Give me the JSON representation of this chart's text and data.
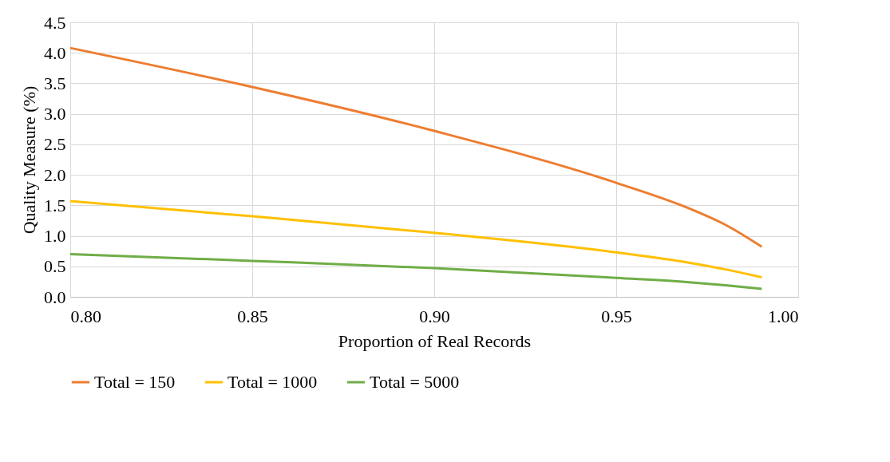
{
  "chart_data": {
    "type": "line",
    "xlabel": "Proportion of Real Records",
    "ylabel": "Quality Measure (%)",
    "x": [
      0.8,
      0.85,
      0.9,
      0.95,
      0.97,
      0.98,
      0.99
    ],
    "series": [
      {
        "name": "Total = 150",
        "color": "#ed7d31",
        "values": [
          4.08,
          3.44,
          2.72,
          1.87,
          1.45,
          1.18,
          0.82
        ]
      },
      {
        "name": "Total = 1000",
        "color": "#ffc000",
        "values": [
          1.57,
          1.32,
          1.05,
          0.73,
          0.56,
          0.45,
          0.32
        ]
      },
      {
        "name": "Total = 5000",
        "color": "#70ad47",
        "values": [
          0.7,
          0.59,
          0.47,
          0.31,
          0.24,
          0.19,
          0.13
        ]
      }
    ],
    "xlim": [
      0.8,
      1.0
    ],
    "xticks": [
      {
        "value": 0.8,
        "label": "0.80"
      },
      0.85,
      {
        "value": 0.9,
        "label": "0.90"
      },
      0.95,
      {
        "value": 1.0,
        "label": "1.00"
      }
    ],
    "ylim": [
      0,
      4.5
    ],
    "yticks": [
      {
        "value": 0,
        "label": "0.0"
      },
      0.5,
      {
        "value": 1,
        "label": "1.0"
      },
      1.5,
      {
        "value": 2,
        "label": "2.0"
      },
      2.5,
      {
        "value": 3,
        "label": "3.0"
      },
      3.5,
      {
        "value": 4,
        "label": "4.0"
      },
      4.5
    ],
    "grid": true,
    "legend": "bottom",
    "marker": "none",
    "line_style": "solid"
  }
}
